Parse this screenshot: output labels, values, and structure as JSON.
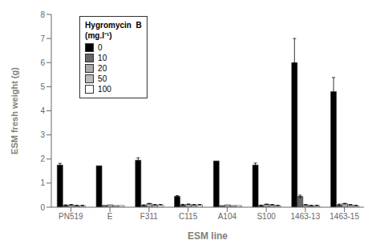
{
  "chart_data": {
    "type": "bar",
    "xlabel": "ESM line",
    "ylabel": "ESM fresh weight (g)",
    "categories": [
      "PN519",
      "E",
      "F311",
      "C115",
      "A104",
      "S100",
      "1463-13",
      "1463-15"
    ],
    "series": [
      {
        "name": "0",
        "color": "#000000",
        "values": [
          1.75,
          1.72,
          1.95,
          0.45,
          1.92,
          1.75,
          6.0,
          4.8
        ],
        "errors": [
          0.07,
          0.0,
          0.1,
          0.03,
          0.0,
          0.08,
          1.0,
          0.58
        ]
      },
      {
        "name": "10",
        "color": "#666666",
        "values": [
          0.08,
          0.08,
          0.08,
          0.1,
          0.07,
          0.07,
          0.45,
          0.1
        ],
        "errors": [
          0.02,
          0.0,
          0.02,
          0.02,
          0.0,
          0.02,
          0.05,
          0.03
        ]
      },
      {
        "name": "20",
        "color": "#aaaaaa",
        "values": [
          0.1,
          0.1,
          0.15,
          0.12,
          0.1,
          0.12,
          0.1,
          0.15
        ],
        "errors": [
          0.01,
          0.0,
          0.01,
          0.01,
          0.0,
          0.01,
          0.01,
          0.01
        ]
      },
      {
        "name": "50",
        "color": "#bbbbbb",
        "values": [
          0.07,
          0.07,
          0.1,
          0.1,
          0.07,
          0.1,
          0.07,
          0.1
        ],
        "errors": [
          0.01,
          0.0,
          0.01,
          0.01,
          0.0,
          0.01,
          0.01,
          0.01
        ]
      },
      {
        "name": "100",
        "color": "#ffffff",
        "values": [
          0.07,
          0.07,
          0.1,
          0.1,
          0.07,
          0.07,
          0.07,
          0.07
        ],
        "errors": [
          0.01,
          0.0,
          0.01,
          0.01,
          0.0,
          0.01,
          0.01,
          0.01
        ]
      }
    ],
    "legend_title": "Hygromycin  B\n(mg.l⁻¹)",
    "legend": "upper left",
    "ylim": [
      0,
      8
    ],
    "yticks": [
      0,
      1,
      2,
      3,
      4,
      5,
      6,
      7,
      8
    ],
    "grid": false
  }
}
